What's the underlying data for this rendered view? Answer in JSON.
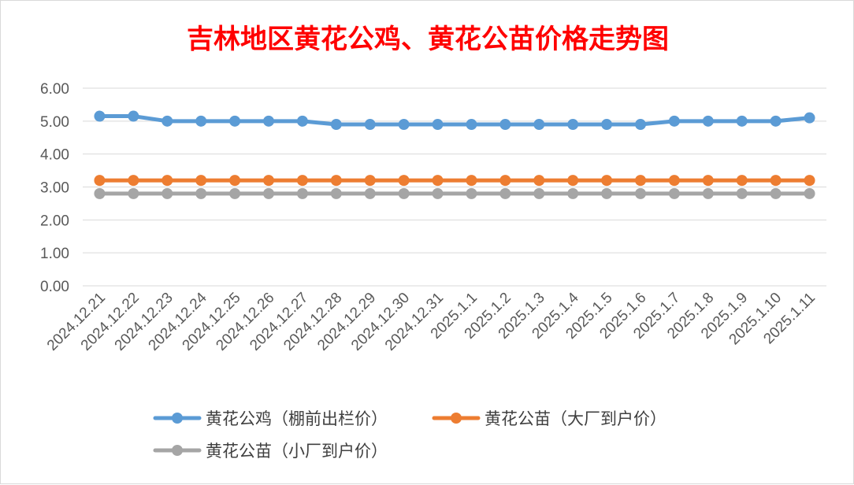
{
  "chart_data": {
    "type": "line",
    "title": "吉林地区黄花公鸡、黄花公苗价格走势图",
    "categories": [
      "2024.12.21",
      "2024.12.22",
      "2024.12.23",
      "2024.12.24",
      "2024.12.25",
      "2024.12.26",
      "2024.12.27",
      "2024.12.28",
      "2024.12.29",
      "2024.12.30",
      "2024.12.31",
      "2025.1.1",
      "2025.1.2",
      "2025.1.3",
      "2025.1.4",
      "2025.1.5",
      "2025.1.6",
      "2025.1.7",
      "2025.1.8",
      "2025.1.9",
      "2025.1.10",
      "2025.1.11"
    ],
    "y_ticks": [
      "0.00",
      "1.00",
      "2.00",
      "3.00",
      "4.00",
      "5.00",
      "6.00"
    ],
    "ylim": [
      0,
      6
    ],
    "grid": true,
    "legend_position": "bottom",
    "series": [
      {
        "name": "黄花公鸡（棚前出栏价）",
        "color": "#5b9bd5",
        "values": [
          5.15,
          5.15,
          5.0,
          5.0,
          5.0,
          5.0,
          5.0,
          4.9,
          4.9,
          4.9,
          4.9,
          4.9,
          4.9,
          4.9,
          4.9,
          4.9,
          4.9,
          5.0,
          5.0,
          5.0,
          5.0,
          5.1
        ]
      },
      {
        "name": "黄花公苗（大厂到户价）",
        "color": "#ed7d31",
        "values": [
          3.2,
          3.2,
          3.2,
          3.2,
          3.2,
          3.2,
          3.2,
          3.2,
          3.2,
          3.2,
          3.2,
          3.2,
          3.2,
          3.2,
          3.2,
          3.2,
          3.2,
          3.2,
          3.2,
          3.2,
          3.2,
          3.2
        ]
      },
      {
        "name": "黄花公苗（小厂到户价）",
        "color": "#a5a5a5",
        "values": [
          2.8,
          2.8,
          2.8,
          2.8,
          2.8,
          2.8,
          2.8,
          2.8,
          2.8,
          2.8,
          2.8,
          2.8,
          2.8,
          2.8,
          2.8,
          2.8,
          2.8,
          2.8,
          2.8,
          2.8,
          2.8,
          2.8
        ]
      }
    ]
  }
}
